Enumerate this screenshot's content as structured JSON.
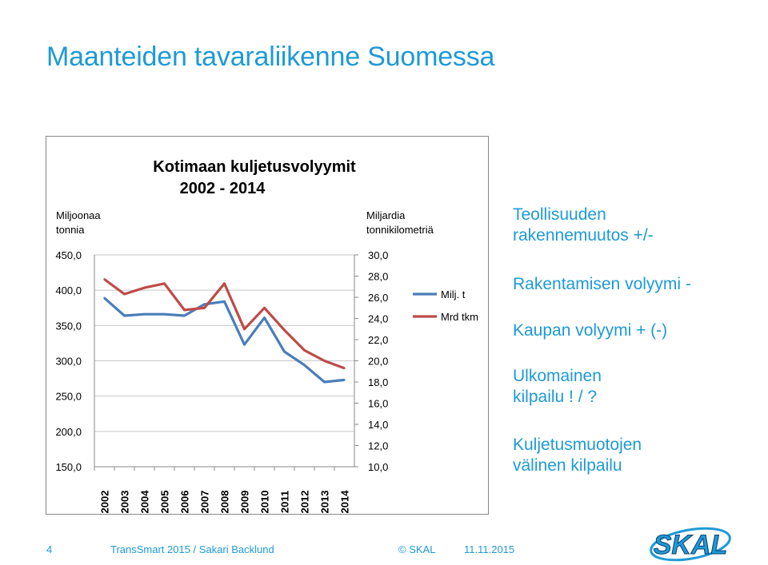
{
  "slide": {
    "title": "Maanteiden tavaraliikenne Suomessa",
    "page_number": "4",
    "footer_author": "TransSmart 2015 / Sakari Backlund",
    "footer_copyright": "© SKAL",
    "footer_date": "11.11.2015",
    "logo_text": "SKAL",
    "bullets": [
      "Teollisuuden\nrakennemuutos +/-",
      "Rakentamisen volyymi  -",
      "Kaupan volyymi + (-)",
      "Ulkomainen\nkilpailu ! / ?",
      "Kuljetusmuotojen\nvälinen kilpailu"
    ]
  },
  "colors": {
    "accent": "#1e9ad6",
    "series_milj": "#4a7ebb",
    "series_mrd": "#be4b48"
  },
  "chart_data": {
    "type": "line",
    "title_line1": "Kotimaan kuljetusvolyymit",
    "title_line2": "2002 - 2014",
    "left_axis_label_line1": "Miljoonaa",
    "left_axis_label_line2": "tonnia",
    "right_axis_label_line1": "Miljardia",
    "right_axis_label_line2": "tonnikilometriä",
    "categories": [
      "2002",
      "2003",
      "2004",
      "2005",
      "2006",
      "2007",
      "2008",
      "2009",
      "2010",
      "2011",
      "2012",
      "2013",
      "2014"
    ],
    "left_ticks": [
      "450,0",
      "400,0",
      "350,0",
      "300,0",
      "250,0",
      "200,0",
      "150,0"
    ],
    "right_ticks": [
      "30,0",
      "28,0",
      "26,0",
      "24,0",
      "22,0",
      "20,0",
      "18,0",
      "16,0",
      "14,0",
      "12,0",
      "10,0"
    ],
    "ylim_left": [
      150,
      450
    ],
    "ylim_right": [
      10,
      30
    ],
    "series": [
      {
        "name": "Milj. t",
        "axis": "left",
        "values": [
          389,
          364,
          366,
          366,
          364,
          380,
          384,
          323,
          361,
          313,
          294,
          270,
          273
        ]
      },
      {
        "name": "Mrd tkm",
        "axis": "right",
        "values": [
          27.7,
          26.3,
          26.9,
          27.3,
          24.8,
          25.0,
          27.3,
          23.0,
          25.0,
          22.9,
          21.0,
          20.0,
          19.3
        ]
      }
    ],
    "legend_position": "right"
  }
}
